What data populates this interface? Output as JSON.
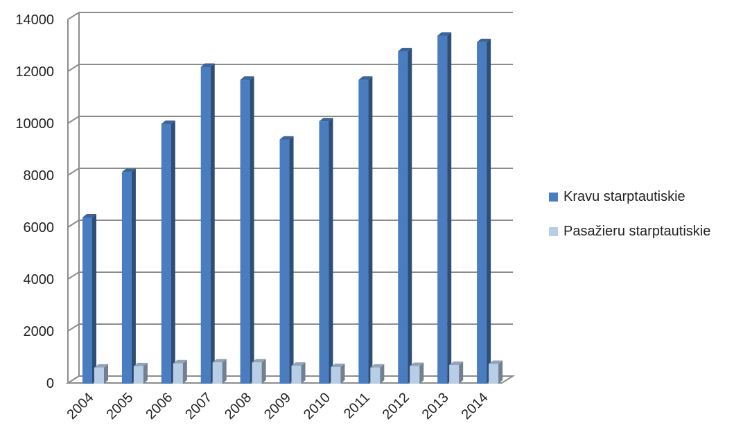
{
  "chart_data": {
    "type": "bar",
    "categories": [
      "2004",
      "2005",
      "2006",
      "2007",
      "2008",
      "2009",
      "2010",
      "2011",
      "2012",
      "2013",
      "2014"
    ],
    "series": [
      {
        "name": "Kravu starptautiskie",
        "color": "#4a7dc0",
        "values": [
          6400,
          8150,
          10000,
          12200,
          11700,
          9400,
          10100,
          11700,
          12800,
          13400,
          13150
        ]
      },
      {
        "name": "Pasažieru starptautiskie",
        "color": "#b8cde6",
        "values": [
          620,
          670,
          780,
          820,
          820,
          690,
          640,
          620,
          680,
          720,
          760
        ]
      }
    ],
    "ylim": [
      0,
      14000
    ],
    "yticks": [
      "0",
      "2000",
      "4000",
      "6000",
      "8000",
      "10000",
      "12000",
      "14000"
    ],
    "grid": true,
    "legend": "right"
  }
}
